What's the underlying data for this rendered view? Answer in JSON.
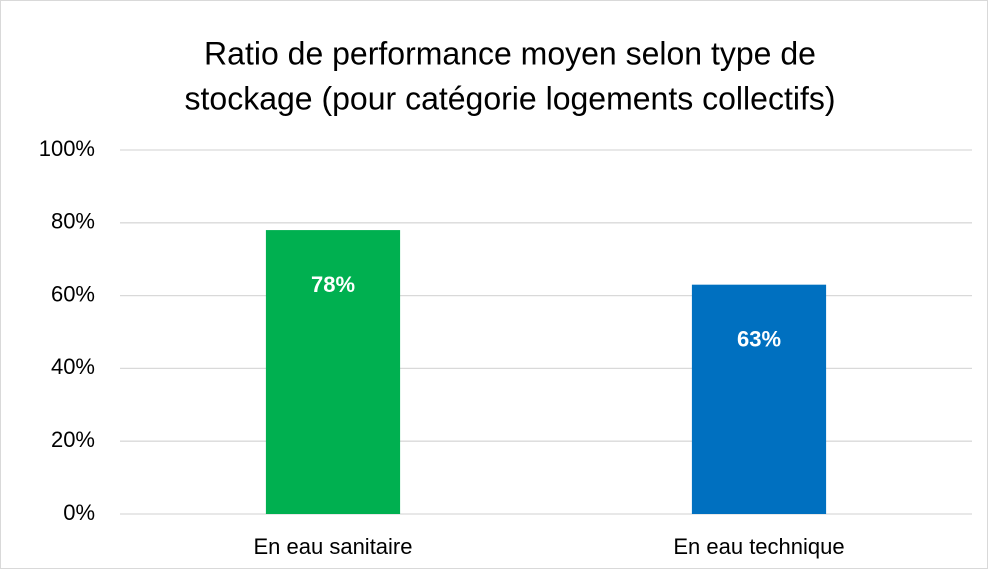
{
  "chart_data": {
    "type": "bar",
    "title": [
      "Ratio de performance moyen selon type de",
      "stockage (pour catégorie logements collectifs)"
    ],
    "categories": [
      "En eau sanitaire",
      "En eau technique"
    ],
    "values": [
      78,
      63
    ],
    "value_labels": [
      "78%",
      "63%"
    ],
    "colors": [
      "#00b050",
      "#0070c0"
    ],
    "ylim": [
      0,
      100
    ],
    "yticks": [
      {
        "value": 0,
        "label": "0%"
      },
      {
        "value": 20,
        "label": "20%"
      },
      {
        "value": 40,
        "label": "40%"
      },
      {
        "value": 60,
        "label": "60%"
      },
      {
        "value": 80,
        "label": "80%"
      },
      {
        "value": 100,
        "label": "100%"
      }
    ],
    "grid": true
  }
}
